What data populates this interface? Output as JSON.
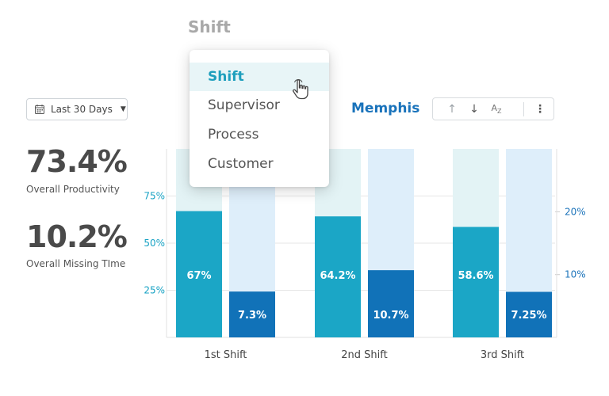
{
  "header": {
    "group_by_label": "Shift"
  },
  "date_filter": {
    "label": "Last 30 Days",
    "icon": "calendar-icon"
  },
  "kpis": [
    {
      "value": "73.4%",
      "label": "Overall Productivity"
    },
    {
      "value": "10.2%",
      "label": "Overall Missing TIme"
    }
  ],
  "location": "Memphis",
  "toolbar": {
    "icons": [
      "arrow-up-icon",
      "arrow-down-icon",
      "sort-az-icon",
      "more-vertical-icon"
    ]
  },
  "dropdown": {
    "items": [
      "Shift",
      "Supervisor",
      "Process",
      "Customer"
    ],
    "selected": "Shift"
  },
  "colors": {
    "productivity": "#1ba6c6",
    "productivity_track": "#e3f3f5",
    "missing_time": "#1172b8",
    "missing_track": "#deeefa",
    "left_axis": "#17a2c4",
    "right_axis": "#1b73ba"
  },
  "chart_data": {
    "type": "bar",
    "categories": [
      "1st Shift",
      "2nd Shift",
      "3rd Shift"
    ],
    "series": [
      {
        "values": [
          67,
          64.2,
          58.6
        ],
        "labels": [
          "67%",
          "64.2%",
          "58.6%"
        ],
        "axis": "left"
      },
      {
        "values": [
          7.3,
          10.7,
          7.25
        ],
        "labels": [
          "7.3%",
          "10.7%",
          "7.25%"
        ],
        "axis": "right"
      }
    ],
    "left_axis": {
      "ticks": [
        25,
        50,
        75
      ],
      "tick_labels": [
        "25%",
        "50%",
        "75%"
      ],
      "ylim": [
        0,
        100
      ]
    },
    "right_axis": {
      "ticks": [
        10,
        20
      ],
      "tick_labels": [
        "10%",
        "20%"
      ],
      "ylim": [
        0,
        30
      ]
    },
    "grid": true
  }
}
